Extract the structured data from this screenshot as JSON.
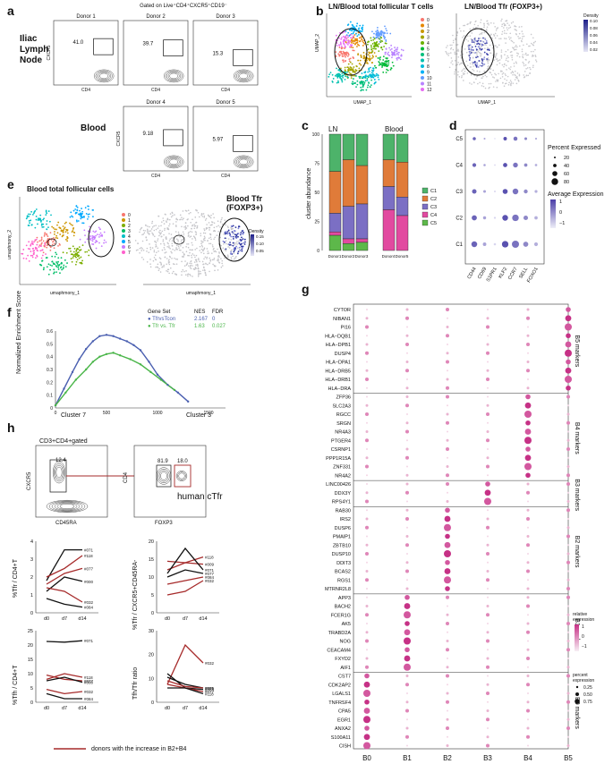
{
  "panels": {
    "a": "a",
    "b": "b",
    "c": "c",
    "d": "d",
    "e": "e",
    "f": "f",
    "g": "g",
    "h": "h"
  },
  "panel_a": {
    "title": "Gated on Live⁺CD4⁺CXCR5⁺CD19⁻",
    "row1_label": "Iliac\nLymph\nNode",
    "row2_label": "Blood",
    "xlabel": "CD4",
    "ylabel": "CXCR5",
    "plots": [
      {
        "donor": "Donor 1",
        "pct": "41.0"
      },
      {
        "donor": "Donor 2",
        "pct": "39.7"
      },
      {
        "donor": "Donor 3",
        "pct": "15.3"
      },
      {
        "donor": "Donor 4",
        "pct": "9.18"
      },
      {
        "donor": "Donor 5",
        "pct": "5.97"
      }
    ]
  },
  "panel_b": {
    "title_left": "LN/Blood total follicular T cells",
    "title_right": "LN/Blood Tfr (FOXP3+)",
    "xlabel": "UMAP_1",
    "ylabel": "UMAP_2",
    "legend": [
      "0",
      "1",
      "2",
      "3",
      "4",
      "5",
      "6",
      "7",
      "8",
      "9",
      "10",
      "11",
      "12"
    ],
    "legend_colors": [
      "#f8766d",
      "#e58700",
      "#c99800",
      "#a3a500",
      "#6bb100",
      "#00ba38",
      "#00bf7d",
      "#00c0af",
      "#00bcd8",
      "#00b0f6",
      "#619cff",
      "#b983ff",
      "#e76bf3"
    ],
    "density_title": "Density",
    "density_ticks": [
      "0.10",
      "0.08",
      "0.06",
      "0.04",
      "0.02"
    ]
  },
  "panel_c": {
    "ylabel": "cluster abundance",
    "group1": "LN",
    "group2": "Blood",
    "legend": [
      "C1",
      "C2",
      "C3",
      "C4",
      "C5"
    ],
    "legend_colors": [
      "#4db36a",
      "#e07b39",
      "#7b6fc4",
      "#e24aa0",
      "#5db84a"
    ]
  },
  "panel_d": {
    "rows": [
      "C5",
      "C4",
      "C3",
      "C2",
      "C1"
    ],
    "cols": [
      "CD44",
      "CD69",
      "S1PR1",
      "KLF2",
      "CCR7",
      "SELL",
      "FOXO1"
    ],
    "legend_title1": "Percent Expressed",
    "legend_sizes": [
      "20",
      "40",
      "60",
      "80"
    ],
    "legend_title2": "Average Expression",
    "legend_ticks": [
      "1",
      "0",
      "−1"
    ]
  },
  "panel_e": {
    "title_left": "Blood total follicular cells",
    "title_right": "Blood Tfr\n(FOXP3+)",
    "xlabel": "umaphmony_1",
    "ylabel": "umaphmony_2",
    "legend": [
      "0",
      "1",
      "2",
      "3",
      "4",
      "5",
      "6",
      "7"
    ],
    "density_title": "Density",
    "density_ticks": [
      "0.15",
      "0.10",
      "0.05"
    ]
  },
  "panel_f": {
    "ylabel": "Normalized Enrichment Score",
    "col_headers": [
      "Gene Set",
      "NES",
      "FDR"
    ],
    "rows": [
      {
        "name": "TfrvsTcon",
        "nes": "2.167",
        "fdr": "0",
        "color": "#4a5fb0"
      },
      {
        "name": "Tfr vs. Tfr",
        "nes": "1.63",
        "fdr": "0.027",
        "color": "#49b548"
      }
    ],
    "xticks": [
      "0",
      "500",
      "1000",
      "1500"
    ],
    "yticks": [
      "0.6",
      "0.5",
      "0.4",
      "0.3",
      "0.2",
      "0.1",
      "0"
    ],
    "left_label": "Cluster 7",
    "right_label": "Cluster 3"
  },
  "panel_g": {
    "columns": [
      "B0",
      "B1",
      "B2",
      "B3",
      "B4",
      "B5"
    ],
    "groups": [
      {
        "label": "B5 markers",
        "genes": [
          "CYTOR",
          "NIBAN1",
          "PI16",
          "HLA−DQB1",
          "HLA−DPB1",
          "DUSP4",
          "HLA−DPA1",
          "HLA−DRB5",
          "HLA−DRB1",
          "HLA−DRA"
        ]
      },
      {
        "label": "B4 markers",
        "genes": [
          "ZFP36",
          "SLC2A3",
          "RGCC",
          "SRGN",
          "NR4A3",
          "PTGER4",
          "CSRNP1",
          "PPP1R15A",
          "ZNF331",
          "NR4A2"
        ]
      },
      {
        "label": "B3 markers",
        "genes": [
          "LINC00426",
          "DDX3Y",
          "RPS4Y1"
        ]
      },
      {
        "label": "B2 markers",
        "genes": [
          "RAB30",
          "IRS2",
          "DUSP6",
          "PMAIP1",
          "ZBTB10",
          "DUSP10",
          "DDIT3",
          "BCAS2",
          "RGS1",
          "MTRNR2L8"
        ]
      },
      {
        "label": "B1 markers",
        "genes": [
          "APP3",
          "BACH2",
          "FCER1G",
          "AK5",
          "TRABD2A",
          "NOG",
          "CEACAM4",
          "FXYD2",
          "AIF1"
        ]
      },
      {
        "label": "B0 markers",
        "genes": [
          "CST7",
          "CDK2AP2",
          "LGALS1",
          "TNFRSF4",
          "CPA5",
          "EGR1",
          "ANXA2",
          "S100A11",
          "CISH"
        ]
      }
    ],
    "legend_title1": "relative\nexpression",
    "legend_ticks": [
      "1",
      "0",
      "−1"
    ],
    "legend_title2": "percent\nexpression",
    "legend_sizes": [
      "0.25",
      "0.50",
      "0.75"
    ]
  },
  "panel_h": {
    "gate_label": "CD3+CD4+gated",
    "flow1": {
      "xlabel": "CD45RA",
      "ylabel": "CXCR5",
      "pct": "12.4"
    },
    "flow2": {
      "xlabel": "FOXP3",
      "ylabel": "CD4",
      "pct_left": "81.9",
      "pct_right": "18.0",
      "annot": "human cTfr"
    },
    "xticks": [
      "d0",
      "d7",
      "d14"
    ],
    "plot1_ylabel": "%Tfr / CD4+T",
    "plot2_ylabel": "%Tfr / CXCR5+CD45RA-",
    "plot3_ylabel": "%Tfh / CD4+T",
    "plot4_ylabel": "Tfh/Tfr ratio",
    "plot1_yticks": [
      "4",
      "3",
      "2",
      "1",
      "0"
    ],
    "plot2_yticks": [
      "20",
      "15",
      "10",
      "5",
      "0"
    ],
    "plot3_yticks": [
      "25",
      "20",
      "15",
      "10",
      "5",
      "0"
    ],
    "plot4_yticks": [
      "30",
      "20",
      "10",
      "0"
    ],
    "donor_labels": [
      "#071",
      "#118",
      "#077",
      "#000",
      "#032",
      "#084"
    ],
    "plot2_donor_labels": [
      "#118",
      "#009",
      "#071",
      "#077",
      "#084",
      "#032"
    ],
    "plot4_donor_labels": [
      "#032",
      "#084",
      "#009",
      "#071",
      "#077",
      "#118"
    ],
    "legend": "donors with the increase in B2+B4",
    "colors": {
      "increase": "#a62a2a",
      "other": "#111111"
    }
  }
}
